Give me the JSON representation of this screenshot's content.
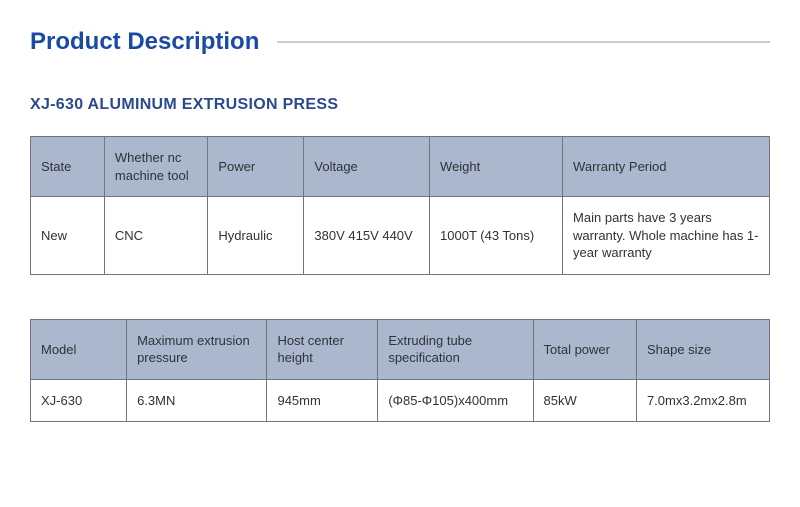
{
  "title": "Product Description",
  "product_name": "XJ-630 ALUMINUM EXTRUSION PRESS",
  "colors": {
    "title_color": "#1a4aa3",
    "subtitle_color": "#2a4a8f",
    "rule_color": "#c9ccd0",
    "header_bg": "#aab7cd",
    "border_color": "#6f7680",
    "text_color": "#2e3338",
    "page_bg": "#ffffff"
  },
  "table1": {
    "col_widths_pct": [
      10,
      14,
      13,
      17,
      18,
      28
    ],
    "headers": [
      "State",
      "Whether nc machine tool",
      "Power",
      "Voltage",
      "Weight",
      "Warranty Period"
    ],
    "rows": [
      [
        "New",
        "CNC",
        "Hydraulic",
        "380V  415V  440V",
        "1000T (43 Tons)",
        "Main parts have 3 years warranty. Whole machine has 1-year warranty"
      ]
    ]
  },
  "table2": {
    "col_widths_pct": [
      13,
      19,
      15,
      21,
      14,
      18
    ],
    "headers": [
      "Model",
      "Maximum extrusion pressure",
      "Host center height",
      "Extruding tube specification",
      "Total power",
      "Shape size"
    ],
    "rows": [
      [
        "XJ-630",
        "6.3MN",
        "945mm",
        "(Φ85-Φ105)x400mm",
        "85kW",
        "7.0mx3.2mx2.8m"
      ]
    ]
  }
}
